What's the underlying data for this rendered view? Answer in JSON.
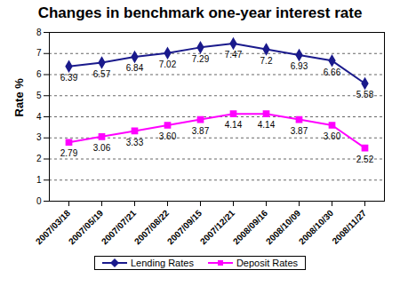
{
  "chart_data": {
    "type": "line",
    "title": "Changes in benchmark one-year interest rate",
    "y_label": "Rate %",
    "categories": [
      "2007/03/18",
      "2007/05/19",
      "2007/07/21",
      "2007/08/22",
      "2007/09/15",
      "2007/12/21",
      "2008/09/16",
      "2008/10/09",
      "2008/10/30",
      "2008/11/27"
    ],
    "series": [
      {
        "name": "Lending Rates",
        "color": "#1a1a8c",
        "marker": "diamond",
        "values": [
          6.39,
          6.57,
          6.84,
          7.02,
          7.29,
          7.47,
          7.2,
          6.93,
          6.66,
          5.58
        ],
        "value_labels": [
          "6.39",
          "6.57",
          "6.84",
          "7.02",
          "7.29",
          "7.47",
          "7.2",
          "6.93",
          "6.66",
          "5.58"
        ]
      },
      {
        "name": "Deposit Rates",
        "color": "#ff00ff",
        "marker": "square",
        "values": [
          2.79,
          3.06,
          3.33,
          3.6,
          3.87,
          4.14,
          4.14,
          3.87,
          3.6,
          2.52
        ],
        "value_labels": [
          "2.79",
          "3.06",
          "3.33",
          "3.60",
          "3.87",
          "4.14",
          "4.14",
          "3.87",
          "3.60",
          "2.52"
        ]
      }
    ],
    "ylim": [
      0,
      8
    ],
    "yticks": [
      0,
      1,
      2,
      3,
      4,
      5,
      6,
      7,
      8
    ],
    "grid": true,
    "legend": "bottom",
    "data_labels": true
  }
}
